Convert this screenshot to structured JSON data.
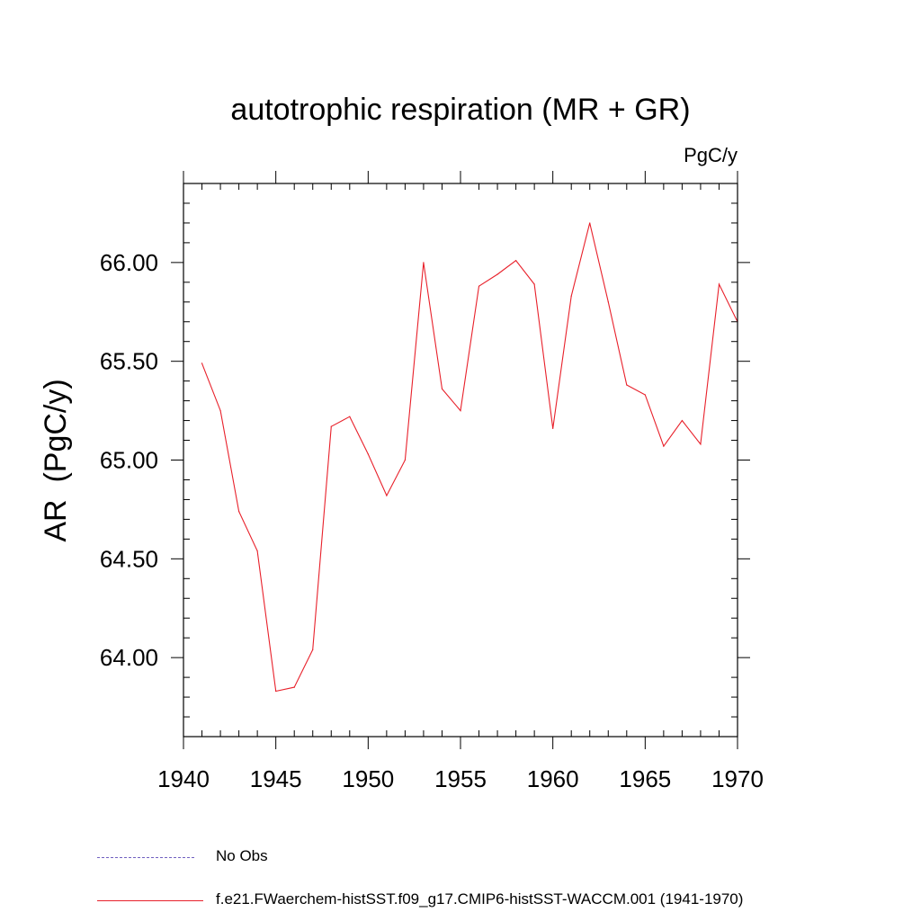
{
  "chart_data": {
    "type": "line",
    "title": "autotrophic respiration (MR + GR)",
    "units": "PgC/y",
    "ylabel": "AR  (PgC/y)",
    "xlabel": "",
    "xlim": [
      1940,
      1970
    ],
    "ylim": [
      63.6,
      66.4
    ],
    "x_ticks": [
      1940,
      1945,
      1950,
      1955,
      1960,
      1965,
      1970
    ],
    "x_tick_labels": [
      "1940",
      "1945",
      "1950",
      "1955",
      "1960",
      "1965",
      "1970"
    ],
    "y_ticks": [
      64.0,
      64.5,
      65.0,
      65.5,
      66.0
    ],
    "y_tick_labels": [
      "64.00",
      "64.50",
      "65.00",
      "65.50",
      "66.00"
    ],
    "grid": false,
    "legend_position": "bottom",
    "series": [
      {
        "name": "f.e21.FWaerchem-histSST.f09_g17.CMIP6-histSST-WACCM.001 (1941-1970)",
        "color": "#e8202a",
        "x": [
          1941,
          1942,
          1943,
          1944,
          1945,
          1946,
          1947,
          1948,
          1949,
          1950,
          1951,
          1952,
          1953,
          1954,
          1955,
          1956,
          1957,
          1958,
          1959,
          1960,
          1961,
          1962,
          1963,
          1964,
          1965,
          1966,
          1967,
          1968,
          1969,
          1970
        ],
        "values": [
          65.49,
          65.25,
          64.74,
          64.54,
          63.83,
          63.85,
          64.04,
          65.17,
          65.22,
          65.03,
          64.82,
          65.0,
          66.0,
          65.36,
          65.25,
          65.88,
          65.94,
          66.01,
          65.89,
          65.16,
          65.83,
          66.2,
          65.8,
          65.38,
          65.33,
          65.07,
          65.2,
          65.08,
          65.89,
          65.7
        ]
      }
    ],
    "legend": [
      {
        "label": "No Obs",
        "style": "dashed",
        "color": "#7060c0"
      },
      {
        "label": "f.e21.FWaerchem-histSST.f09_g17.CMIP6-histSST-WACCM.001 (1941-1970)",
        "style": "solid",
        "color": "#e8202a"
      }
    ]
  }
}
